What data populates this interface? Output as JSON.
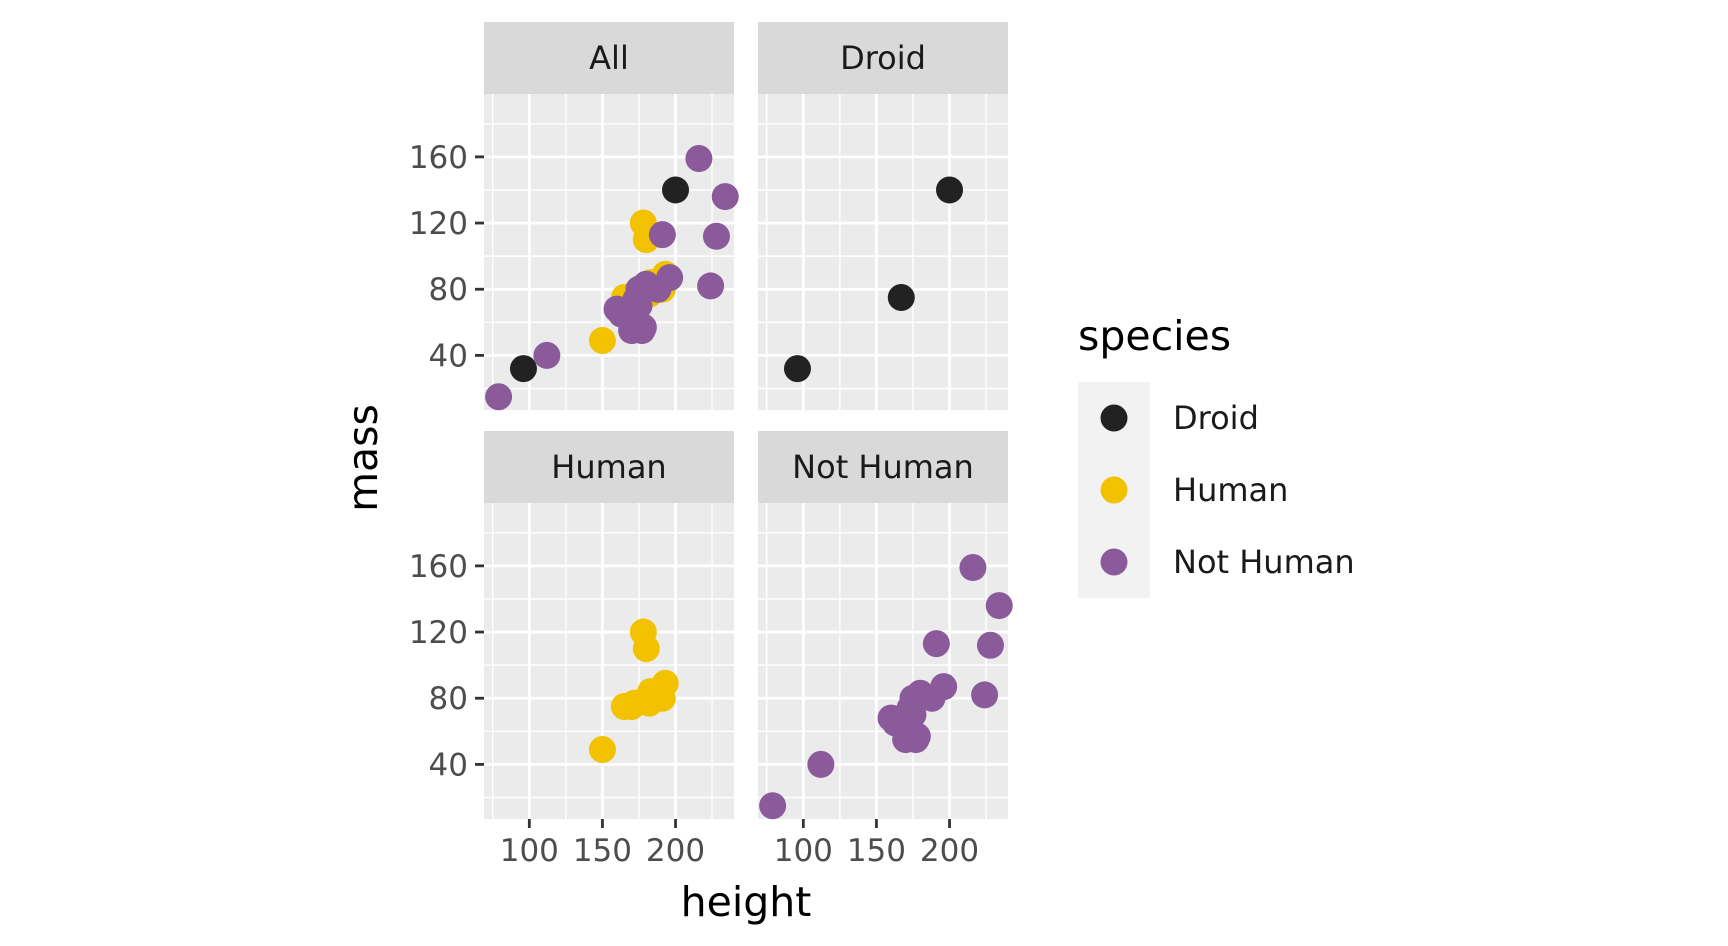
{
  "chart_data": {
    "type": "scatter",
    "facet_layout": "2x2",
    "xlabel": "height",
    "ylabel": "mass",
    "xlim": [
      69,
      240
    ],
    "ylim": [
      7,
      198
    ],
    "x_ticks": [
      100,
      150,
      200
    ],
    "y_ticks": [
      40,
      80,
      120,
      160
    ],
    "grid": true,
    "legend": {
      "title": "species",
      "position": "right",
      "items": [
        {
          "label": "Droid",
          "color": "#222222"
        },
        {
          "label": "Human",
          "color": "#f2c200"
        },
        {
          "label": "Not Human",
          "color": "#8a5a9b"
        }
      ]
    },
    "series": [
      {
        "name": "Droid",
        "color": "#222222",
        "points": [
          [
            96,
            32
          ],
          [
            167,
            75
          ],
          [
            200,
            140
          ]
        ]
      },
      {
        "name": "Human",
        "color": "#f2c200",
        "points": [
          [
            150,
            49
          ],
          [
            165,
            75
          ],
          [
            170,
            75
          ],
          [
            178,
            120
          ],
          [
            180,
            110
          ],
          [
            183,
            84
          ],
          [
            182,
            77
          ],
          [
            178,
            78
          ],
          [
            188,
            84
          ],
          [
            191,
            80
          ],
          [
            193,
            89
          ],
          [
            188,
            80
          ],
          [
            172,
            77
          ]
        ]
      },
      {
        "name": "Not Human",
        "color": "#8a5a9b",
        "points": [
          [
            79,
            15
          ],
          [
            112,
            40
          ],
          [
            160,
            68
          ],
          [
            163,
            65
          ],
          [
            170,
            55
          ],
          [
            175,
            70
          ],
          [
            178,
            57
          ],
          [
            177,
            55
          ],
          [
            173,
            74
          ],
          [
            175,
            80
          ],
          [
            180,
            83
          ],
          [
            188,
            80
          ],
          [
            191,
            113
          ],
          [
            196,
            87
          ],
          [
            216,
            159
          ],
          [
            228,
            112
          ],
          [
            224,
            82
          ],
          [
            234,
            136
          ],
          [
            165,
            66
          ]
        ]
      }
    ],
    "panels": [
      {
        "label": "All",
        "series": [
          "Droid",
          "Human",
          "Not Human"
        ]
      },
      {
        "label": "Droid",
        "series": [
          "Droid"
        ]
      },
      {
        "label": "Human",
        "series": [
          "Human"
        ]
      },
      {
        "label": "Not Human",
        "series": [
          "Not Human"
        ]
      }
    ]
  }
}
